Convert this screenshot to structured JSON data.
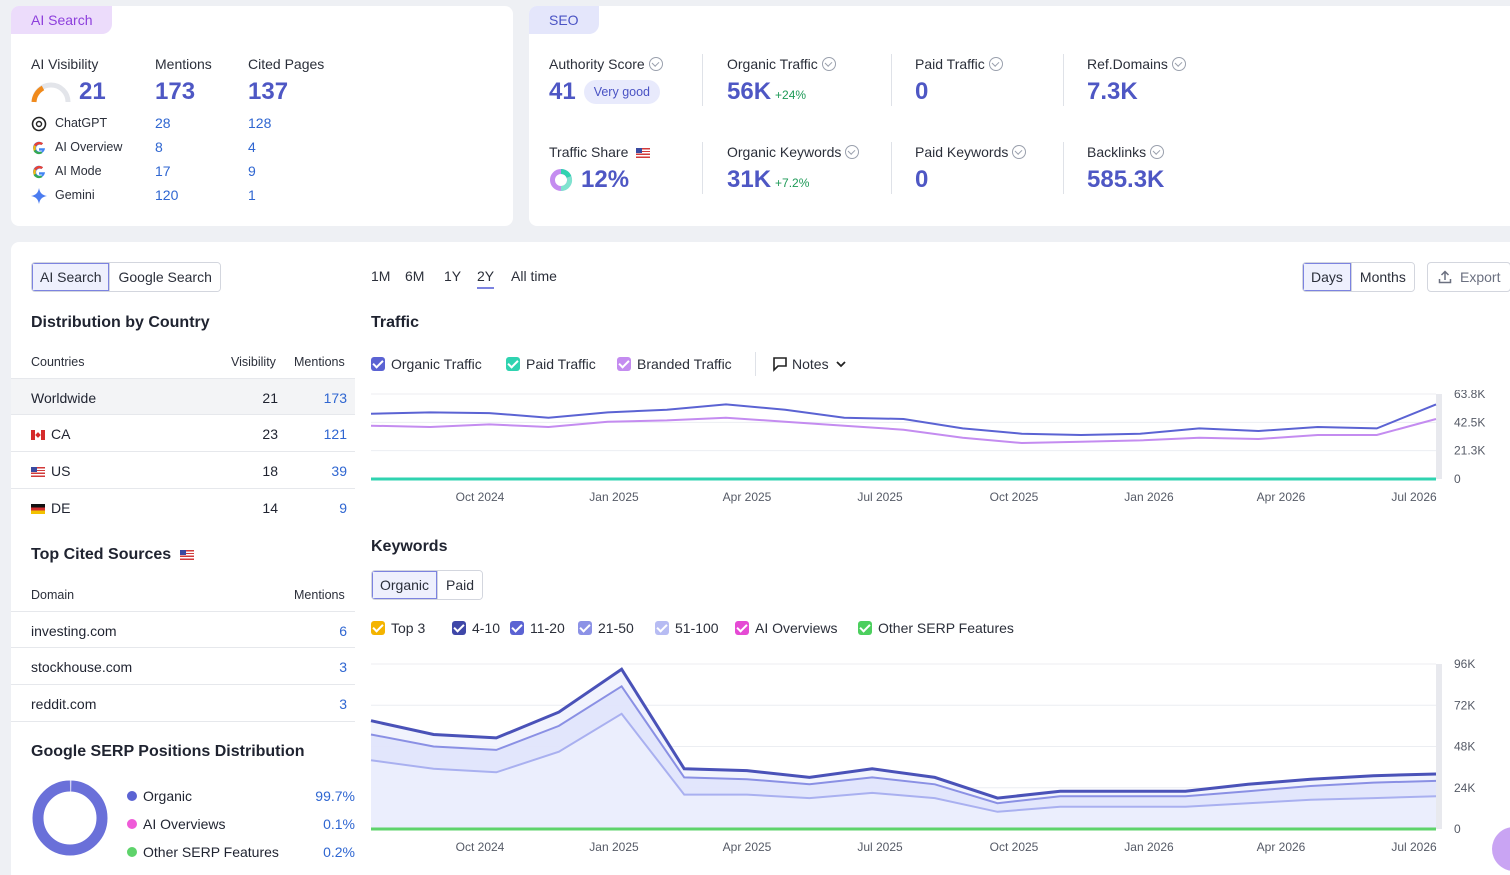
{
  "ai_card": {
    "tag": "AI Search",
    "visibility_label": "AI Visibility",
    "visibility_value": "21",
    "mentions_label": "Mentions",
    "mentions_value": "173",
    "cited_label": "Cited Pages",
    "cited_value": "137",
    "rows": [
      {
        "name": "ChatGPT",
        "mentions": "28",
        "cited": "128",
        "icon": "chatgpt-icon"
      },
      {
        "name": "AI Overview",
        "mentions": "8",
        "cited": "4",
        "icon": "google-icon"
      },
      {
        "name": "AI Mode",
        "mentions": "17",
        "cited": "9",
        "icon": "google-icon"
      },
      {
        "name": "Gemini",
        "mentions": "120",
        "cited": "1",
        "icon": "gemini-icon"
      }
    ]
  },
  "seo_card": {
    "tag": "SEO",
    "authority_label": "Authority Score",
    "authority_value": "41",
    "authority_badge": "Very good",
    "organic_label": "Organic Traffic",
    "organic_value": "56K",
    "organic_delta": "+24%",
    "paid_label": "Paid Traffic",
    "paid_value": "0",
    "refdomains_label": "Ref.Domains",
    "refdomains_value": "7.3K",
    "share_label": "Traffic Share",
    "share_value": "12%",
    "okw_label": "Organic Keywords",
    "okw_value": "31K",
    "okw_delta": "+7.2%",
    "pkw_label": "Paid Keywords",
    "pkw_value": "0",
    "backlinks_label": "Backlinks",
    "backlinks_value": "585.3K"
  },
  "left_panel": {
    "toggle": [
      "AI Search",
      "Google Search"
    ],
    "country_title": "Distribution by Country",
    "country_headers": [
      "Countries",
      "Visibility",
      "Mentions"
    ],
    "countries": [
      {
        "name": "Worldwide",
        "visibility": "21",
        "mentions": "173",
        "flag": ""
      },
      {
        "name": "CA",
        "visibility": "23",
        "mentions": "121",
        "flag": "ca"
      },
      {
        "name": "US",
        "visibility": "18",
        "mentions": "39",
        "flag": "us"
      },
      {
        "name": "DE",
        "visibility": "14",
        "mentions": "9",
        "flag": "de"
      }
    ],
    "sources_title": "Top Cited Sources",
    "sources_headers": [
      "Domain",
      "Mentions"
    ],
    "sources": [
      {
        "domain": "investing.com",
        "mentions": "6"
      },
      {
        "domain": "stockhouse.com",
        "mentions": "3"
      },
      {
        "domain": "reddit.com",
        "mentions": "3"
      }
    ],
    "serp_title": "Google SERP Positions Distribution",
    "serp_items": [
      {
        "label": "Organic",
        "value": "99.7%",
        "color": "#5b63d3"
      },
      {
        "label": "AI Overviews",
        "value": "0.1%",
        "color": "#ef5bd8"
      },
      {
        "label": "Other SERP Features",
        "value": "0.2%",
        "color": "#5ed36b"
      }
    ]
  },
  "toolbar": {
    "ranges": [
      "1M",
      "6M",
      "1Y",
      "2Y",
      "All time"
    ],
    "active_range": "2Y",
    "days": "Days",
    "months": "Months",
    "export": "Export"
  },
  "traffic": {
    "title": "Traffic",
    "legend": [
      {
        "label": "Organic Traffic",
        "color": "#5b63d3"
      },
      {
        "label": "Paid Traffic",
        "color": "#2fd3b0"
      },
      {
        "label": "Branded Traffic",
        "color": "#c48cf0"
      }
    ],
    "notes": "Notes"
  },
  "keywords": {
    "title": "Keywords",
    "toggle": [
      "Organic",
      "Paid"
    ],
    "legend": [
      {
        "label": "Top 3",
        "color": "#f4b400"
      },
      {
        "label": "4-10",
        "color": "#3f47a8"
      },
      {
        "label": "11-20",
        "color": "#5b63d3"
      },
      {
        "label": "21-50",
        "color": "#8c92e6"
      },
      {
        "label": "51-100",
        "color": "#b7bcf3"
      },
      {
        "label": "AI Overviews",
        "color": "#e54ad4"
      },
      {
        "label": "Other SERP Features",
        "color": "#4ccf5e"
      }
    ]
  },
  "chart_data": [
    {
      "type": "line",
      "title": "Traffic",
      "x_ticks": [
        "Oct 2024",
        "Jan 2025",
        "Apr 2025",
        "Jul 2025",
        "Oct 2025",
        "Jan 2026",
        "Apr 2026",
        "Jul 2026"
      ],
      "y_ticks": [
        "63.8K",
        "42.5K",
        "21.3K",
        "0"
      ],
      "ylim": [
        0,
        63800
      ],
      "series": [
        {
          "name": "Organic Traffic",
          "values": [
            49000,
            50000,
            49500,
            46000,
            50000,
            52000,
            56000,
            52000,
            46000,
            45000,
            38000,
            34000,
            33000,
            34000,
            38000,
            36000,
            39000,
            38000,
            56000
          ]
        },
        {
          "name": "Branded Traffic",
          "values": [
            40000,
            39000,
            41000,
            39000,
            43000,
            44000,
            46000,
            43000,
            40000,
            37000,
            31000,
            27000,
            28000,
            29000,
            31000,
            30000,
            33000,
            33000,
            45000
          ]
        },
        {
          "name": "Paid Traffic",
          "values": [
            0,
            0,
            0,
            0,
            0,
            0,
            0,
            0,
            0,
            0,
            0,
            0,
            0,
            0,
            0,
            0,
            0,
            0,
            0
          ]
        }
      ]
    },
    {
      "type": "area",
      "title": "Keywords",
      "x_ticks": [
        "Oct 2024",
        "Jan 2025",
        "Apr 2025",
        "Jul 2025",
        "Oct 2025",
        "Jan 2026",
        "Apr 2026",
        "Jul 2026"
      ],
      "y_ticks": [
        "96K",
        "72K",
        "48K",
        "24K",
        "0"
      ],
      "ylim": [
        0,
        96000
      ],
      "series": [
        {
          "name": "51-100",
          "values": [
            63000,
            55000,
            53000,
            68000,
            93000,
            35000,
            34000,
            30000,
            35000,
            30000,
            18000,
            22000,
            22000,
            22000,
            26000,
            29000,
            31000,
            32000
          ]
        },
        {
          "name": "21-50",
          "values": [
            55000,
            48000,
            46000,
            60000,
            83000,
            30000,
            29000,
            26000,
            30000,
            26000,
            15000,
            19000,
            19000,
            19000,
            22000,
            25000,
            27000,
            28000
          ]
        },
        {
          "name": "11-20",
          "values": [
            40000,
            35000,
            33000,
            45000,
            67000,
            20000,
            20000,
            18000,
            21000,
            18000,
            10000,
            13000,
            13000,
            13000,
            15000,
            17000,
            18000,
            19000
          ]
        }
      ]
    }
  ]
}
